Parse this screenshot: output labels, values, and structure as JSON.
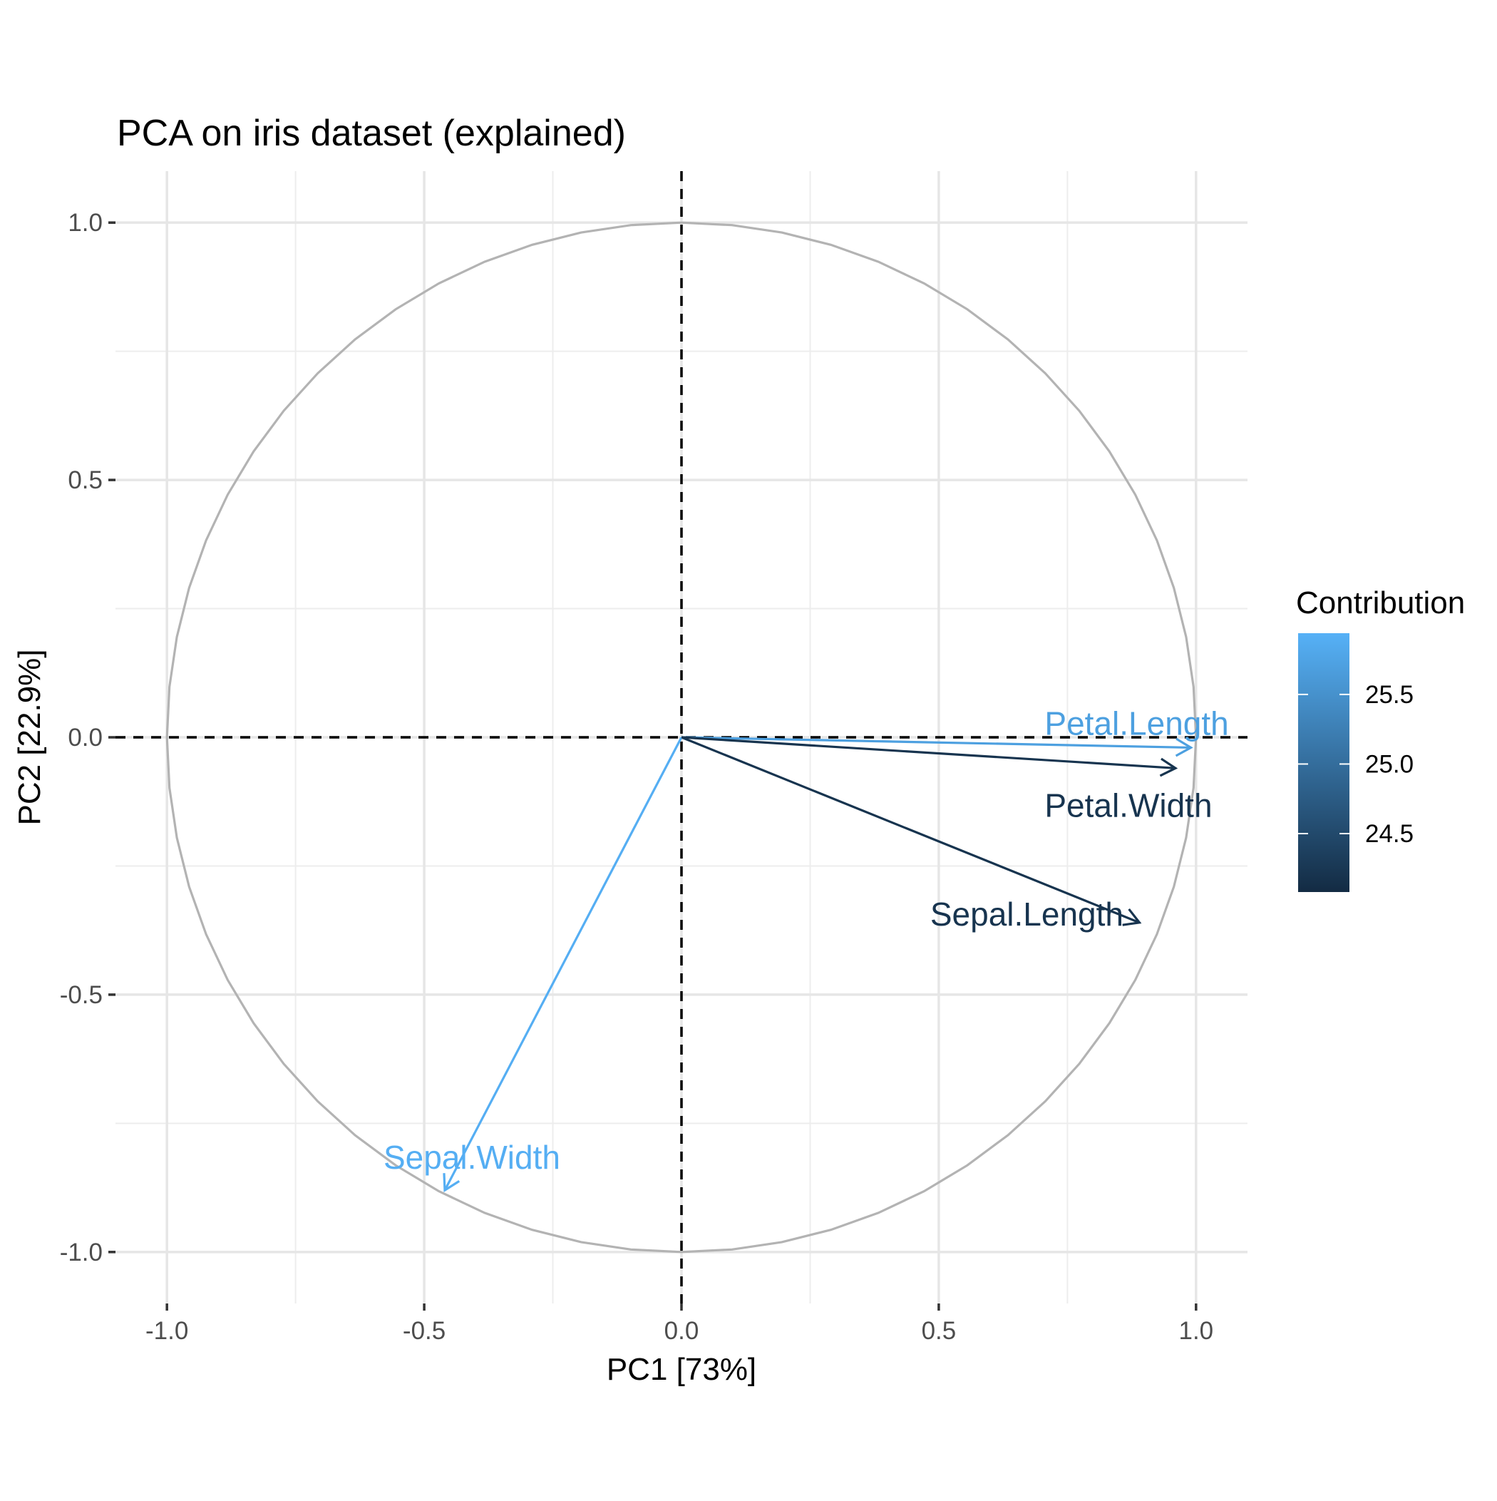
{
  "chart_data": {
    "type": "scatter",
    "subtype": "pca-correlation-circle",
    "title": "PCA on iris dataset (explained)",
    "xlabel": "PC1 [73%]",
    "ylabel": "PC2 [22.9%]",
    "xlim": [
      -1.1,
      1.1
    ],
    "ylim": [
      -1.1,
      1.1
    ],
    "x_ticks": [
      -1.0,
      -0.5,
      0.0,
      0.5,
      1.0
    ],
    "x_tick_labels": [
      "-1.0",
      "-0.5",
      "0.0",
      "0.5",
      "1.0"
    ],
    "y_ticks": [
      -1.0,
      -0.5,
      0.0,
      0.5,
      1.0
    ],
    "y_tick_labels": [
      "-1.0",
      "-0.5",
      "0.0",
      "0.5",
      "1.0"
    ],
    "grid": true,
    "unit_circle": true,
    "reference_lines": {
      "x": 0,
      "y": 0,
      "style": "dashed"
    },
    "legend": {
      "title": "Contribution",
      "type": "colorbar",
      "position": "right",
      "ticks": [
        24.5,
        25.0,
        25.5
      ],
      "tick_labels": [
        "24.5",
        "25.0",
        "25.5"
      ],
      "range": [
        24.08,
        25.94
      ],
      "color_low": "#132B43",
      "color_high": "#56B1F7"
    },
    "series": [
      {
        "name": "Sepal.Length",
        "x": 0.89,
        "y": -0.36,
        "contribution": 24.2
      },
      {
        "name": "Sepal.Width",
        "x": -0.46,
        "y": -0.88,
        "contribution": 25.9
      },
      {
        "name": "Petal.Length",
        "x": 0.99,
        "y": -0.02,
        "contribution": 25.7
      },
      {
        "name": "Petal.Width",
        "x": 0.96,
        "y": -0.06,
        "contribution": 24.2
      }
    ]
  }
}
